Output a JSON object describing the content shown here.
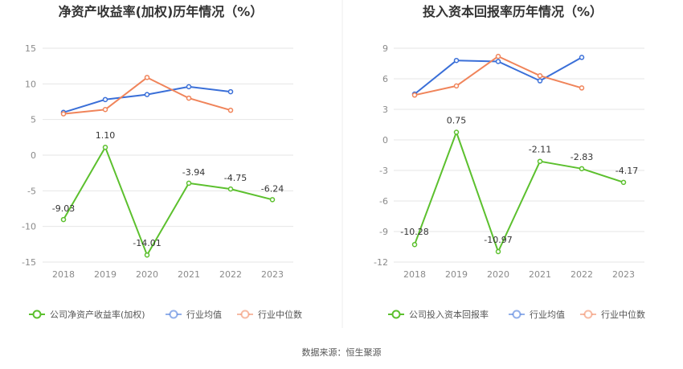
{
  "source": "数据来源：恒生聚源",
  "chart_data": [
    {
      "type": "line",
      "title": "净资产收益率(加权)历年情况（%）",
      "categories": [
        "2018",
        "2019",
        "2020",
        "2021",
        "2022",
        "2023"
      ],
      "yticks": [
        15,
        10,
        5,
        0,
        -5,
        -10,
        -15
      ],
      "ylim": [
        -15,
        15
      ],
      "grid": true,
      "legend_position": "bottom",
      "series": [
        {
          "name": "公司净资产收益率(加权)",
          "color": "#5cc02e",
          "values": [
            -9.03,
            1.1,
            -14.01,
            -3.94,
            -4.75,
            -6.24
          ],
          "labels": [
            "-9.03",
            "1.10",
            "-14.01",
            "-3.94",
            "-4.75",
            "-6.24"
          ]
        },
        {
          "name": "行业均值",
          "color": "#3a6fd8",
          "values": [
            6.0,
            7.8,
            8.5,
            9.6,
            8.9,
            null
          ]
        },
        {
          "name": "行业中位数",
          "color": "#f0845a",
          "values": [
            5.8,
            6.4,
            10.9,
            8.0,
            6.3,
            null
          ]
        }
      ]
    },
    {
      "type": "line",
      "title": "投入资本回报率历年情况（%）",
      "categories": [
        "2018",
        "2019",
        "2020",
        "2021",
        "2022",
        "2023"
      ],
      "yticks": [
        9,
        6,
        3,
        0,
        -3,
        -6,
        -9,
        -12
      ],
      "ylim": [
        -12,
        9
      ],
      "grid": true,
      "legend_position": "bottom",
      "series": [
        {
          "name": "公司投入资本回报率",
          "color": "#5cc02e",
          "values": [
            -10.28,
            0.75,
            -10.97,
            -2.11,
            -2.83,
            -4.17
          ],
          "labels": [
            "-10.28",
            "0.75",
            "-10.97",
            "-2.11",
            "-2.83",
            "-4.17"
          ]
        },
        {
          "name": "行业均值",
          "color": "#3a6fd8",
          "values": [
            4.5,
            7.8,
            7.7,
            5.8,
            8.1,
            null
          ]
        },
        {
          "name": "行业中位数",
          "color": "#f0845a",
          "values": [
            4.4,
            5.3,
            8.2,
            6.3,
            5.1,
            null
          ]
        }
      ]
    }
  ]
}
